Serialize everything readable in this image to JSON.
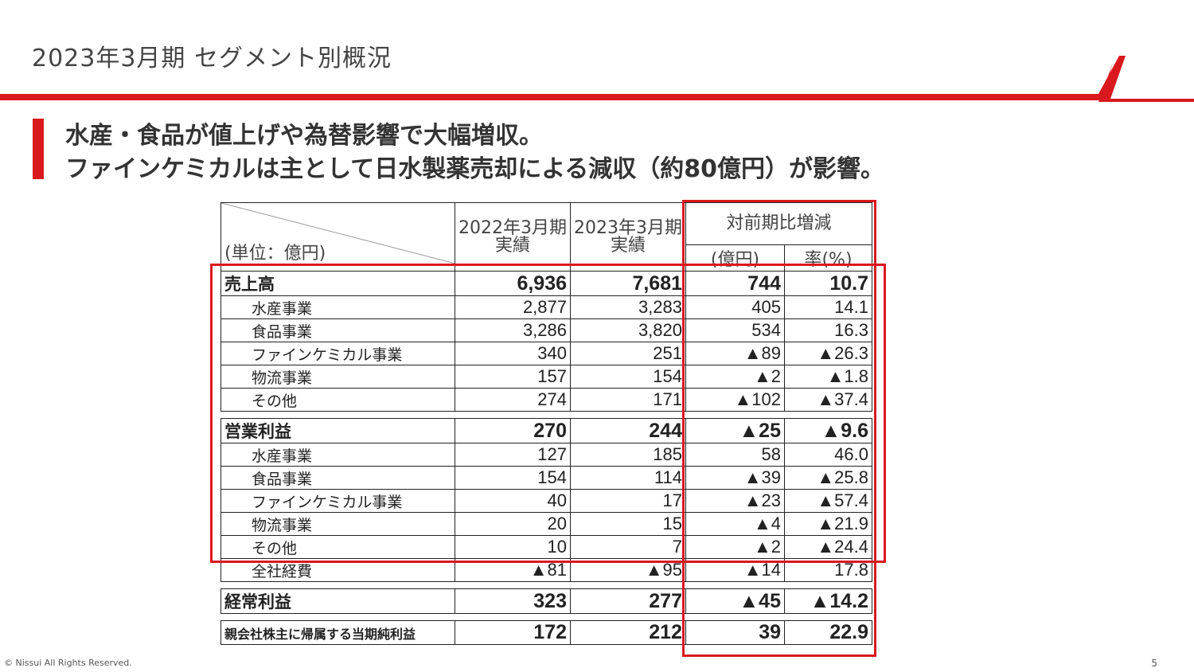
{
  "title": "2023年3月期 セグメント別概況",
  "headline": {
    "line1": "水産・食品が値上げや為替影響で大幅増収。",
    "line2": "ファインケミカルは主として日水製薬売却による減収（約80億円）が影響。"
  },
  "colors": {
    "accent": "#d9191d"
  },
  "table": {
    "unit_label": "(単位：億円)",
    "col_2022": "2022年3月期",
    "col_2022_sub": "実績",
    "col_2023": "2023年3月期",
    "col_2023_sub": "実績",
    "col_change": "対前期比増減",
    "col_change_amount": "(億円)",
    "col_change_rate": "率(%)",
    "sales": {
      "label": "売上高",
      "v2022": "6,936",
      "v2023": "7,681",
      "diff": "744",
      "rate": "10.7",
      "rows": [
        {
          "label": "水産事業",
          "v2022": "2,877",
          "v2023": "3,283",
          "diff": "405",
          "rate": "14.1"
        },
        {
          "label": "食品事業",
          "v2022": "3,286",
          "v2023": "3,820",
          "diff": "534",
          "rate": "16.3"
        },
        {
          "label": "ファインケミカル事業",
          "v2022": "340",
          "v2023": "251",
          "diff": "▲89",
          "rate": "▲26.3"
        },
        {
          "label": "物流事業",
          "v2022": "157",
          "v2023": "154",
          "diff": "▲2",
          "rate": "▲1.8"
        },
        {
          "label": "その他",
          "v2022": "274",
          "v2023": "171",
          "diff": "▲102",
          "rate": "▲37.4"
        }
      ]
    },
    "op_income": {
      "label": "営業利益",
      "v2022": "270",
      "v2023": "244",
      "diff": "▲25",
      "rate": "▲9.6",
      "rows": [
        {
          "label": "水産事業",
          "v2022": "127",
          "v2023": "185",
          "diff": "58",
          "rate": "46.0"
        },
        {
          "label": "食品事業",
          "v2022": "154",
          "v2023": "114",
          "diff": "▲39",
          "rate": "▲25.8"
        },
        {
          "label": "ファインケミカル事業",
          "v2022": "40",
          "v2023": "17",
          "diff": "▲23",
          "rate": "▲57.4"
        },
        {
          "label": "物流事業",
          "v2022": "20",
          "v2023": "15",
          "diff": "▲4",
          "rate": "▲21.9"
        },
        {
          "label": "その他",
          "v2022": "10",
          "v2023": "7",
          "diff": "▲2",
          "rate": "▲24.4"
        },
        {
          "label": "全社経費",
          "v2022": "▲81",
          "v2023": "▲95",
          "diff": "▲14",
          "rate": "17.8"
        }
      ]
    },
    "ordinary": {
      "label": "経常利益",
      "v2022": "323",
      "v2023": "277",
      "diff": "▲45",
      "rate": "▲14.2"
    },
    "net": {
      "label": "親会社株主に帰属する当期純利益",
      "v2022": "172",
      "v2023": "212",
      "diff": "39",
      "rate": "22.9"
    }
  },
  "footer": {
    "copyright": "© Nissui All Rights Reserved.",
    "page": "5"
  }
}
